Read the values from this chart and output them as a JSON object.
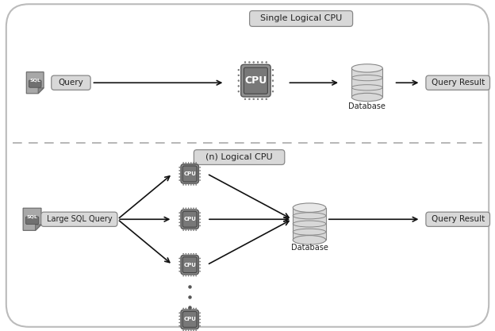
{
  "bg_color": "#ffffff",
  "outer_fc": "#ffffff",
  "outer_ec": "#bbbbbb",
  "box_fc": "#d4d4d4",
  "box_ec": "#888888",
  "label_fc": "#d8d8d8",
  "label_ec": "#888888",
  "text_color": "#222222",
  "arrow_color": "#111111",
  "dashed_color": "#aaaaaa",
  "cpu_fc": "#909090",
  "cpu_inner_fc": "#787878",
  "cpu_pin_fc": "#888888",
  "db_body_fc": "#d8d8d8",
  "db_top_fc": "#e8e8e8",
  "db_edge": "#888888",
  "top_label": "Single Logical CPU",
  "bottom_label": "(n) Logical CPU",
  "query_label": "Query",
  "large_query_label": "Large SQL Query",
  "db_label": "Database",
  "result_label": "Query Result",
  "sql_label": "SQL",
  "cpu_label": "CPU",
  "figw": 6.24,
  "figh": 4.17,
  "dpi": 100,
  "xmax": 12.0,
  "ymax": 8.0
}
